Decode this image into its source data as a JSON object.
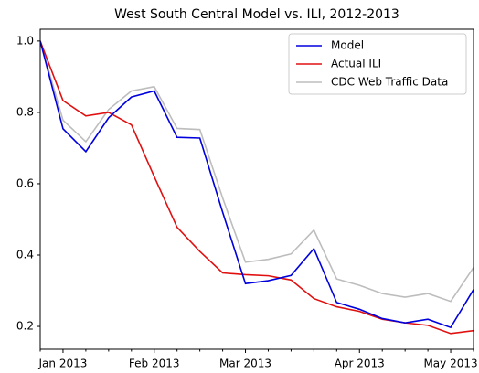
{
  "chart_data": {
    "type": "line",
    "title": "West South Central Model vs. ILI, 2012-2013",
    "categories": [
      null,
      "Jan 2013",
      null,
      null,
      null,
      "Feb 2013",
      null,
      null,
      null,
      "Mar 2013",
      null,
      null,
      null,
      null,
      "Apr 2013",
      null,
      null,
      null,
      "May 2013",
      null
    ],
    "series": [
      {
        "name": "Model",
        "color": "#0000dd",
        "values": [
          1.0,
          0.754,
          0.69,
          0.785,
          0.843,
          0.86,
          0.73,
          0.728,
          0.52,
          0.32,
          0.328,
          0.343,
          0.418,
          0.267,
          0.248,
          0.222,
          0.21,
          0.22,
          0.197,
          0.303
        ]
      },
      {
        "name": "Actual ILI",
        "color": "#e01010",
        "values": [
          1.0,
          0.833,
          0.79,
          0.8,
          0.765,
          0.62,
          0.478,
          0.41,
          0.35,
          0.345,
          0.342,
          0.33,
          0.278,
          0.255,
          0.242,
          0.22,
          0.21,
          0.203,
          0.18,
          0.188
        ]
      },
      {
        "name": "CDC Web Traffic Data",
        "color": "#bdbdbd",
        "values": [
          1.0,
          0.778,
          0.718,
          0.808,
          0.86,
          0.872,
          0.755,
          0.752,
          0.56,
          0.38,
          0.388,
          0.403,
          0.47,
          0.333,
          0.315,
          0.292,
          0.282,
          0.292,
          0.27,
          0.365
        ]
      }
    ],
    "ylim": [
      0.136,
      1.033
    ],
    "yticks": [
      0.2,
      0.4,
      0.6,
      0.8,
      {
        "value": 1,
        "label": "1.0"
      }
    ],
    "grid": false,
    "legend": "upper right"
  }
}
